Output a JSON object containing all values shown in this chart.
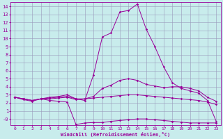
{
  "xlabel": "Windchill (Refroidissement éolien,°C)",
  "bg_color": "#c8ecec",
  "grid_color": "#9999bb",
  "line_color": "#990099",
  "xlim": [
    -0.5,
    23.5
  ],
  "ylim": [
    -0.8,
    14.5
  ],
  "ytick_vals": [
    14,
    13,
    12,
    11,
    10,
    9,
    8,
    7,
    6,
    5,
    4,
    3,
    2,
    1,
    0
  ],
  "ytick_labels": [
    "14",
    "13",
    "12",
    "11",
    "10",
    "9",
    "8",
    "7",
    "6",
    "5",
    "4",
    "3",
    "2",
    "1",
    "-0"
  ],
  "xticks": [
    0,
    1,
    2,
    3,
    4,
    5,
    6,
    7,
    8,
    9,
    10,
    11,
    12,
    13,
    14,
    15,
    16,
    17,
    18,
    19,
    20,
    21,
    22,
    23
  ],
  "lines": [
    {
      "x": [
        0,
        1,
        2,
        3,
        4,
        5,
        6,
        7,
        8,
        9,
        10,
        11,
        12,
        13,
        14,
        15,
        16,
        17,
        18,
        19,
        20,
        21,
        22,
        23
      ],
      "y": [
        2.7,
        2.5,
        2.3,
        2.5,
        2.6,
        2.7,
        2.8,
        2.5,
        2.3,
        5.5,
        10.2,
        10.7,
        13.3,
        13.5,
        14.3,
        11.2,
        9.0,
        6.5,
        4.5,
        3.8,
        3.5,
        3.2,
        2.3,
        -0.3
      ]
    },
    {
      "x": [
        0,
        1,
        2,
        3,
        4,
        5,
        6,
        7,
        8,
        9,
        10,
        11,
        12,
        13,
        14,
        15,
        16,
        17,
        18,
        19,
        20,
        21,
        22,
        23
      ],
      "y": [
        2.7,
        2.5,
        2.3,
        2.5,
        2.7,
        2.8,
        3.0,
        2.5,
        2.5,
        2.8,
        3.8,
        4.2,
        4.8,
        5.0,
        4.8,
        4.3,
        4.1,
        3.9,
        4.0,
        4.0,
        3.8,
        3.5,
        2.7,
        2.2
      ]
    },
    {
      "x": [
        0,
        1,
        2,
        3,
        4,
        5,
        6,
        7,
        8,
        9,
        10,
        11,
        12,
        13,
        14,
        15,
        16,
        17,
        18,
        19,
        20,
        21,
        22,
        23
      ],
      "y": [
        2.7,
        2.5,
        2.3,
        2.5,
        2.5,
        2.6,
        2.7,
        2.4,
        2.5,
        2.6,
        2.7,
        2.8,
        2.9,
        3.0,
        3.0,
        2.9,
        2.8,
        2.7,
        2.6,
        2.5,
        2.4,
        2.3,
        2.1,
        1.8
      ]
    },
    {
      "x": [
        0,
        1,
        2,
        3,
        4,
        5,
        6,
        7,
        8,
        9,
        10,
        11,
        12,
        13,
        14,
        15,
        16,
        17,
        18,
        19,
        20,
        21,
        22,
        23
      ],
      "y": [
        2.7,
        2.4,
        2.2,
        2.5,
        2.3,
        2.2,
        2.1,
        -0.7,
        -0.5,
        -0.45,
        -0.45,
        -0.3,
        -0.2,
        -0.1,
        0.0,
        0.0,
        -0.1,
        -0.2,
        -0.3,
        -0.4,
        -0.5,
        -0.5,
        -0.5,
        -0.5
      ]
    }
  ]
}
